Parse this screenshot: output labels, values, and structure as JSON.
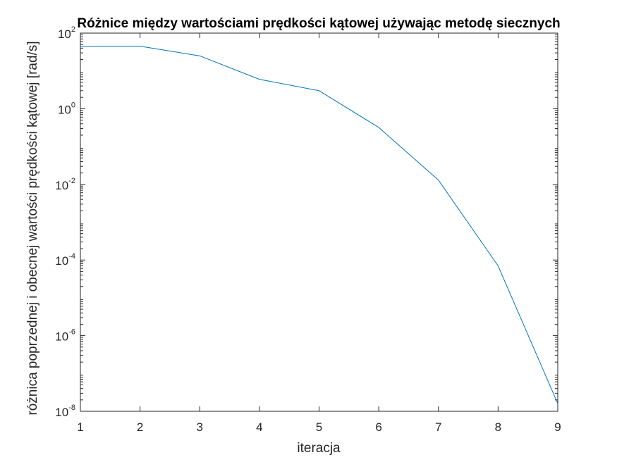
{
  "chart_data": {
    "type": "line",
    "title": "Różnice między wartościami prędkości kątowej używając metodę siecznych",
    "xlabel": "iteracja",
    "ylabel": "różnica poprzednej i obecnej wartości prędkości kątowej [rad/s]",
    "x": [
      1,
      2,
      3,
      4,
      5,
      6,
      7,
      8,
      9
    ],
    "series": [
      {
        "values": [
          45,
          45,
          25,
          6,
          3,
          0.32,
          0.013,
          7e-05,
          1.6e-08
        ]
      }
    ],
    "xlim": [
      1,
      9
    ],
    "ylim": [
      1e-08,
      100
    ],
    "yscale": "log",
    "xticks": [
      "1",
      "2",
      "3",
      "4",
      "5",
      "6",
      "7",
      "8",
      "9"
    ],
    "yticks": [
      {
        "base": "10",
        "exp": "-8"
      },
      {
        "base": "10",
        "exp": "-6"
      },
      {
        "base": "10",
        "exp": "-4"
      },
      {
        "base": "10",
        "exp": "-2"
      },
      {
        "base": "10",
        "exp": "0"
      },
      {
        "base": "10",
        "exp": "2"
      }
    ],
    "grid": false,
    "legend": "none",
    "colors": {
      "line": "#0072BD",
      "axes": "#262626"
    }
  }
}
